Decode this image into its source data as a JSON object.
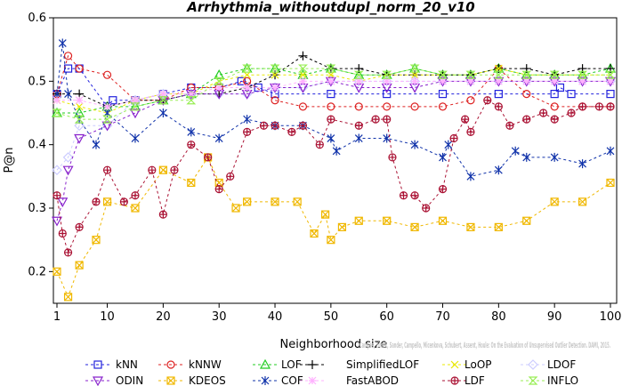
{
  "chart_data": {
    "type": "line",
    "title": "Arrhythmia_withoutdupl_norm_20_v10",
    "xlabel": "Neighborhood size",
    "ylabel": "P@n",
    "xlim": [
      1,
      100
    ],
    "ylim": [
      0.15,
      0.6
    ],
    "x_ticks": [
      "1",
      "10",
      "20",
      "30",
      "40",
      "50",
      "60",
      "70",
      "80",
      "90",
      "100"
    ],
    "y_ticks": [
      "0.2",
      "0.3",
      "0.4",
      "0.5",
      "0.6"
    ],
    "watermark": "Campos, Zimek, Sander, Campello, Micenkova, Schubert, Assent, Houle: On the Evaluation of Unsupervised Outlier Detection. DAMI, 2015.",
    "series": [
      {
        "name": "kNN",
        "color": "#2222dd",
        "marker": "square",
        "x": [
          1,
          3,
          5,
          10,
          11,
          15,
          20,
          25,
          30,
          34,
          37,
          40,
          50,
          60,
          70,
          80,
          90,
          91,
          93,
          100
        ],
        "values": [
          0.48,
          0.52,
          0.52,
          0.46,
          0.47,
          0.47,
          0.48,
          0.49,
          0.49,
          0.5,
          0.49,
          0.48,
          0.48,
          0.48,
          0.48,
          0.48,
          0.48,
          0.49,
          0.48,
          0.48
        ]
      },
      {
        "name": "kNNW",
        "color": "#dd2222",
        "marker": "circle",
        "x": [
          1,
          3,
          5,
          10,
          15,
          20,
          25,
          30,
          35,
          40,
          45,
          50,
          55,
          60,
          65,
          70,
          75,
          80,
          85,
          90,
          95,
          100
        ],
        "values": [
          0.48,
          0.54,
          0.52,
          0.51,
          0.47,
          0.47,
          0.49,
          0.49,
          0.5,
          0.47,
          0.46,
          0.46,
          0.46,
          0.46,
          0.46,
          0.46,
          0.47,
          0.52,
          0.48,
          0.46,
          0.46,
          0.46
        ]
      },
      {
        "name": "LOF",
        "color": "#22cc22",
        "marker": "triangle-up",
        "x": [
          1,
          5,
          10,
          15,
          20,
          25,
          30,
          35,
          40,
          45,
          50,
          55,
          60,
          65,
          70,
          75,
          80,
          85,
          90,
          95,
          100
        ],
        "values": [
          0.45,
          0.45,
          0.46,
          0.46,
          0.47,
          0.48,
          0.51,
          0.52,
          0.52,
          0.51,
          0.52,
          0.51,
          0.51,
          0.52,
          0.51,
          0.51,
          0.52,
          0.51,
          0.51,
          0.51,
          0.52
        ]
      },
      {
        "name": "SimplifiedLOF",
        "color": "#000000",
        "marker": "plus",
        "x": [
          1,
          5,
          10,
          15,
          20,
          25,
          30,
          35,
          40,
          45,
          50,
          55,
          60,
          65,
          70,
          75,
          80,
          85,
          90,
          95,
          100
        ],
        "values": [
          0.48,
          0.48,
          0.46,
          0.47,
          0.47,
          0.48,
          0.48,
          0.49,
          0.51,
          0.54,
          0.52,
          0.52,
          0.51,
          0.51,
          0.51,
          0.51,
          0.52,
          0.52,
          0.51,
          0.52,
          0.52
        ]
      },
      {
        "name": "LoOP",
        "color": "#e8e800",
        "marker": "x",
        "x": [
          1,
          5,
          10,
          15,
          20,
          25,
          30,
          35,
          40,
          45,
          50,
          55,
          60,
          65,
          70,
          75,
          80,
          85,
          90,
          95,
          100
        ],
        "values": [
          0.47,
          0.46,
          0.45,
          0.47,
          0.48,
          0.48,
          0.5,
          0.51,
          0.51,
          0.51,
          0.51,
          0.5,
          0.51,
          0.51,
          0.51,
          0.51,
          0.52,
          0.51,
          0.51,
          0.51,
          0.51
        ]
      },
      {
        "name": "LDOF",
        "color": "#ccccff",
        "marker": "diamond",
        "x": [
          1,
          3,
          5,
          10,
          15,
          20,
          25,
          30,
          35,
          40,
          45,
          50,
          55,
          60,
          65,
          70,
          75,
          80,
          85,
          90,
          95,
          100
        ],
        "values": [
          0.36,
          0.38,
          0.43,
          0.43,
          0.47,
          0.48,
          0.48,
          0.48,
          0.48,
          0.49,
          0.49,
          0.5,
          0.5,
          0.5,
          0.5,
          0.5,
          0.5,
          0.5,
          0.5,
          0.5,
          0.5,
          0.5
        ]
      },
      {
        "name": "ODIN",
        "color": "#8822cc",
        "marker": "triangle-down",
        "x": [
          1,
          2,
          3,
          5,
          10,
          15,
          20,
          25,
          30,
          35,
          40,
          45,
          50,
          55,
          60,
          65,
          70,
          75,
          80,
          85,
          90,
          95,
          100
        ],
        "values": [
          0.28,
          0.31,
          0.36,
          0.41,
          0.43,
          0.45,
          0.47,
          0.48,
          0.48,
          0.48,
          0.49,
          0.49,
          0.5,
          0.49,
          0.49,
          0.49,
          0.5,
          0.5,
          0.5,
          0.5,
          0.5,
          0.5,
          0.5
        ]
      },
      {
        "name": "KDEOS",
        "color": "#f0b800",
        "marker": "square-x",
        "x": [
          1,
          3,
          5,
          8,
          10,
          15,
          20,
          25,
          28,
          30,
          33,
          35,
          40,
          44,
          47,
          49,
          50,
          52,
          55,
          60,
          65,
          70,
          75,
          80,
          85,
          90,
          95,
          100
        ],
        "values": [
          0.2,
          0.16,
          0.21,
          0.25,
          0.31,
          0.3,
          0.36,
          0.34,
          0.38,
          0.34,
          0.3,
          0.31,
          0.31,
          0.31,
          0.26,
          0.29,
          0.25,
          0.27,
          0.28,
          0.28,
          0.27,
          0.28,
          0.27,
          0.27,
          0.28,
          0.31,
          0.31,
          0.34
        ]
      },
      {
        "name": "COF",
        "color": "#1133aa",
        "marker": "asterisk",
        "x": [
          1,
          2,
          3,
          5,
          8,
          10,
          15,
          20,
          25,
          30,
          35,
          40,
          45,
          50,
          51,
          55,
          60,
          65,
          70,
          71,
          75,
          80,
          83,
          85,
          90,
          95,
          100
        ],
        "values": [
          0.48,
          0.56,
          0.48,
          0.44,
          0.4,
          0.45,
          0.41,
          0.45,
          0.42,
          0.41,
          0.44,
          0.43,
          0.43,
          0.41,
          0.39,
          0.41,
          0.41,
          0.4,
          0.38,
          0.4,
          0.35,
          0.36,
          0.39,
          0.38,
          0.38,
          0.37,
          0.39
        ]
      },
      {
        "name": "FastABOD",
        "color": "#ffb0ff",
        "marker": "star",
        "x": [
          1,
          5,
          10,
          15,
          20,
          25,
          30,
          35,
          40,
          45,
          50,
          55,
          60,
          65,
          70,
          75,
          80,
          85,
          90,
          95,
          100
        ],
        "values": [
          0.47,
          0.47,
          0.46,
          0.47,
          0.48,
          0.48,
          0.49,
          0.49,
          0.49,
          0.5,
          0.5,
          0.5,
          0.5,
          0.5,
          0.5,
          0.5,
          0.5,
          0.5,
          0.5,
          0.5,
          0.5
        ]
      },
      {
        "name": "LDF",
        "color": "#aa1133",
        "marker": "circle-plus",
        "x": [
          1,
          2,
          3,
          5,
          8,
          10,
          13,
          15,
          18,
          20,
          22,
          25,
          28,
          30,
          32,
          35,
          38,
          40,
          43,
          45,
          48,
          50,
          55,
          58,
          60,
          61,
          63,
          65,
          67,
          70,
          72,
          74,
          75,
          78,
          80,
          82,
          85,
          88,
          90,
          93,
          95,
          98,
          100
        ],
        "values": [
          0.32,
          0.26,
          0.23,
          0.27,
          0.31,
          0.36,
          0.31,
          0.32,
          0.36,
          0.29,
          0.36,
          0.4,
          0.38,
          0.33,
          0.35,
          0.42,
          0.43,
          0.43,
          0.42,
          0.43,
          0.4,
          0.44,
          0.43,
          0.44,
          0.44,
          0.38,
          0.32,
          0.32,
          0.3,
          0.33,
          0.41,
          0.44,
          0.42,
          0.47,
          0.46,
          0.43,
          0.44,
          0.45,
          0.44,
          0.45,
          0.46,
          0.46,
          0.46
        ]
      },
      {
        "name": "INFLO",
        "color": "#99ee55",
        "marker": "hourglass",
        "x": [
          1,
          5,
          10,
          15,
          20,
          25,
          30,
          35,
          40,
          45,
          50,
          55,
          60,
          65,
          70,
          75,
          80,
          85,
          90,
          95,
          100
        ],
        "values": [
          0.45,
          0.44,
          0.44,
          0.46,
          0.47,
          0.47,
          0.5,
          0.52,
          0.52,
          0.52,
          0.52,
          0.51,
          0.51,
          0.52,
          0.51,
          0.51,
          0.51,
          0.51,
          0.51,
          0.51,
          0.51
        ]
      }
    ],
    "legend_order": [
      [
        "kNN",
        "kNNW",
        "LOF",
        "SimplifiedLOF",
        "LoOP",
        "LDOF"
      ],
      [
        "ODIN",
        "KDEOS",
        "COF",
        "FastABOD",
        "LDF",
        "INFLO"
      ]
    ],
    "legend_position": "bottom",
    "grid": false
  }
}
